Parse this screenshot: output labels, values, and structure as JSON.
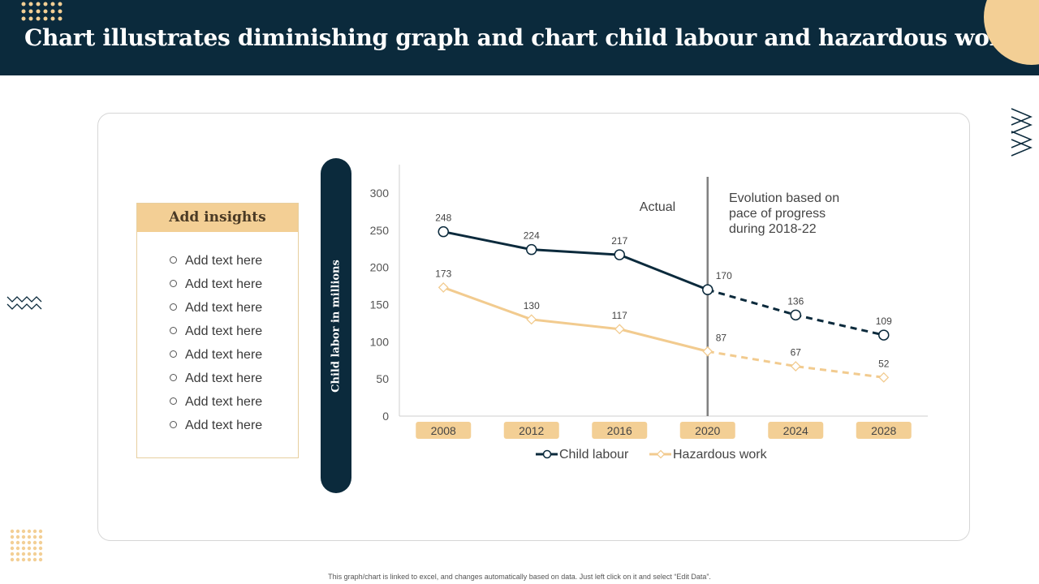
{
  "page": {
    "title": "Chart illustrates diminishing graph and chart child labour and hazardous work",
    "footnote": "This graph/chart is linked to excel, and changes automatically based on data. Just left click on it and select “Edit Data”."
  },
  "insights": {
    "heading": "Add insights",
    "items": [
      "Add text here",
      "Add text here",
      "Add text here",
      "Add text here",
      "Add text here",
      "Add text here",
      "Add text here",
      "Add text here"
    ]
  },
  "colors": {
    "navy": "#0b2a3c",
    "accent": "#f3cf95",
    "child_labour": "#0b2a3c",
    "hazardous_work": "#f2cb8f"
  },
  "chart_data": {
    "type": "line",
    "ylabel": "Child labor in millions",
    "ylim": [
      0,
      300
    ],
    "yticks": [
      0,
      50,
      100,
      150,
      200,
      250,
      300
    ],
    "x": [
      "2008",
      "2012",
      "2016",
      "2020",
      "2024",
      "2028"
    ],
    "actual_through": "2020",
    "series": [
      {
        "name": "Child labour",
        "values": [
          248,
          224,
          217,
          170,
          136,
          109
        ]
      },
      {
        "name": "Hazardous work",
        "values": [
          173,
          130,
          117,
          87,
          67,
          52
        ]
      }
    ],
    "annotations": {
      "actual": "Actual",
      "projection": [
        "Evolution based on",
        "pace of progress",
        "during 2018-22"
      ]
    },
    "legend_position": "bottom"
  }
}
